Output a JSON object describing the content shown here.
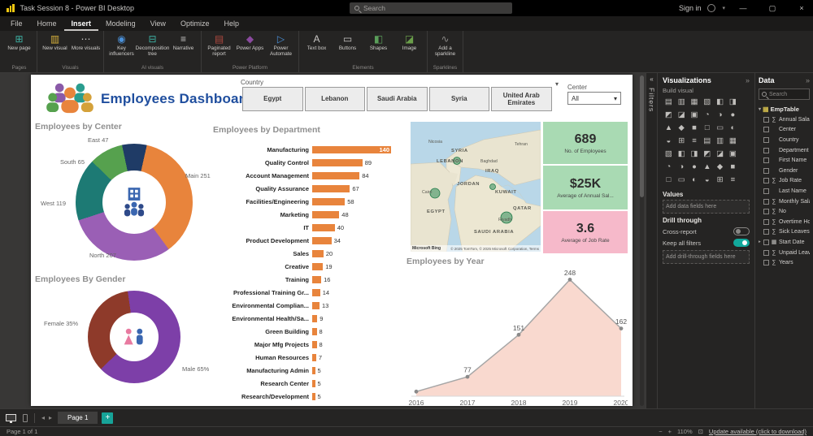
{
  "titlebar": {
    "title": "Task Session 8 - Power BI Desktop",
    "search_placeholder": "Search",
    "sign_in": "Sign in"
  },
  "menubar": {
    "items": [
      "File",
      "Home",
      "Insert",
      "Modeling",
      "View",
      "Optimize",
      "Help"
    ],
    "active": "Insert"
  },
  "ribbon": {
    "groups": [
      {
        "label": "Pages",
        "buttons": [
          {
            "label": "New page",
            "icon": "new-page-icon",
            "glyph": "⊞",
            "color": "#3db0a2"
          }
        ]
      },
      {
        "label": "Visuals",
        "buttons": [
          {
            "label": "New visual",
            "icon": "new-visual-icon",
            "glyph": "▥",
            "color": "#d8b23c"
          },
          {
            "label": "More visuals",
            "icon": "more-visuals-icon",
            "glyph": "⋯",
            "color": "#c8c6c4"
          }
        ]
      },
      {
        "label": "AI visuals",
        "buttons": [
          {
            "label": "Key influencers",
            "icon": "key-influencers-icon",
            "glyph": "◉",
            "color": "#4a90d9"
          },
          {
            "label": "Decomposition tree",
            "icon": "decomposition-tree-icon",
            "glyph": "⊟",
            "color": "#3db0a2"
          },
          {
            "label": "Narrative",
            "icon": "narrative-icon",
            "glyph": "≡",
            "color": "#c8c6c4"
          }
        ]
      },
      {
        "label": "Power Platform",
        "buttons": [
          {
            "label": "Paginated report",
            "icon": "paginated-report-icon",
            "glyph": "▤",
            "color": "#b0493f"
          },
          {
            "label": "Power Apps",
            "icon": "power-apps-icon",
            "glyph": "◆",
            "color": "#8a4a9e"
          },
          {
            "label": "Power Automate",
            "icon": "power-automate-icon",
            "glyph": "▷",
            "color": "#4a90d9"
          }
        ]
      },
      {
        "label": "Elements",
        "buttons": [
          {
            "label": "Text box",
            "icon": "text-box-icon",
            "glyph": "A",
            "color": "#c8c6c4"
          },
          {
            "label": "Buttons",
            "icon": "buttons-icon",
            "glyph": "▭",
            "color": "#c8c6c4"
          },
          {
            "label": "Shapes",
            "icon": "shapes-icon",
            "glyph": "◧",
            "color": "#5a9e5a"
          },
          {
            "label": "Image",
            "icon": "image-icon",
            "glyph": "◪",
            "color": "#6a9e4a"
          }
        ]
      },
      {
        "label": "Sparklines",
        "buttons": [
          {
            "label": "Add a sparkline",
            "icon": "sparkline-icon",
            "glyph": "∿",
            "color": "#8a8886"
          }
        ]
      }
    ]
  },
  "filters_strip": {
    "label": "Filters"
  },
  "viz_panel": {
    "title": "Visualizations",
    "subtitle": "Build visual",
    "icons": [
      "stacked-bar-chart",
      "stacked-column-chart",
      "clustered-bar-chart",
      "clustered-column-chart",
      "100-stacked-bar-chart",
      "100-stacked-column-chart",
      "line-chart",
      "area-chart",
      "stacked-area-chart",
      "line-and-stacked-column-chart",
      "line-and-clustered-column-chart",
      "ribbon-chart",
      "waterfall-chart",
      "funnel-chart",
      "scatter-chart",
      "pie-chart",
      "donut-chart",
      "treemap",
      "map",
      "filled-map",
      "shape-map",
      "azure-map",
      "gauge",
      "card",
      "multi-row-card",
      "kpi",
      "slicer",
      "table",
      "matrix",
      "r-script-visual",
      "python-visual",
      "key-influencers",
      "decomposition-tree",
      "qna-visual",
      "smart-narrative",
      "metrics",
      "paginated-report",
      "arcgis-map",
      "power-apps-visual",
      "power-automate-visual",
      "get-more-visuals",
      "text-box"
    ],
    "values_label": "Values",
    "add_fields_placeholder": "Add data fields here",
    "drill_label": "Drill through",
    "cross_report_label": "Cross-report",
    "cross_report_state": "Off",
    "keep_filters_label": "Keep all filters",
    "keep_filters_state": "On",
    "add_drill_placeholder": "Add drill-through fields here"
  },
  "data_panel": {
    "title": "Data",
    "search_placeholder": "Search",
    "table_name": "EmpTable",
    "fields": [
      {
        "name": "Annual Salary",
        "numeric": true
      },
      {
        "name": "Center",
        "numeric": false
      },
      {
        "name": "Country",
        "numeric": false
      },
      {
        "name": "Department",
        "numeric": false
      },
      {
        "name": "First Name",
        "numeric": false
      },
      {
        "name": "Gender",
        "numeric": false
      },
      {
        "name": "Job Rate",
        "numeric": true
      },
      {
        "name": "Last Name",
        "numeric": false
      },
      {
        "name": "Monthly Salary",
        "numeric": true
      },
      {
        "name": "No",
        "numeric": true
      },
      {
        "name": "Overtime Hours",
        "numeric": true
      },
      {
        "name": "Sick Leaves",
        "numeric": true
      },
      {
        "name": "Start Date",
        "numeric": false,
        "date": true
      },
      {
        "name": "Unpaid Leaves",
        "numeric": true
      },
      {
        "name": "Years",
        "numeric": true
      }
    ]
  },
  "pagebar": {
    "page_tab": "Page 1"
  },
  "statusbar": {
    "page_info": "Page 1 of 1",
    "zoom": "110%",
    "update": "Update available (click to download)"
  },
  "report": {
    "title": "Employees Dashboard",
    "country_label": "Country",
    "country_buttons": [
      "Egypt",
      "Lebanon",
      "Saudi Arabia",
      "Syria",
      "United Arab Emirates"
    ],
    "center_label": "Center",
    "center_value": "All",
    "sections": {
      "center_title": "Employees by Center",
      "department_title": "Employees by Department",
      "gender_title": "Employees By Gender",
      "year_title": "Employees by Year"
    },
    "center_donut_labels": [
      "East 47",
      "South 65",
      "Main 251",
      "West 119",
      "North 207"
    ],
    "gender_donut_labels": [
      "Female 35%",
      "Male 65%"
    ],
    "kpis": [
      {
        "value": "689",
        "label": "No. of Employees"
      },
      {
        "value": "$25K",
        "label": "Average of Annual Sal..."
      },
      {
        "value": "3.6",
        "label": "Average of Job Rate"
      }
    ],
    "map": {
      "labels": [
        "Nicosia",
        "SYRIA",
        "LEBANON",
        "Baghdad",
        "IRAQ",
        "Tehran",
        "JORDAN",
        "Cairo",
        "EGYPT",
        "KUWAIT",
        "QATAR",
        "Riyadh",
        "SAUDI ARABIA"
      ],
      "attribution": "© 2025 TomTom, © 2025 Microsoft Corporation, Terms",
      "provider": "Microsoft Bing"
    }
  },
  "chart_data": [
    {
      "type": "donut",
      "title": "Employees by Center",
      "categories": [
        "East",
        "Main",
        "North",
        "West",
        "South"
      ],
      "values": [
        47,
        251,
        207,
        119,
        65
      ],
      "colors": [
        "#1f3b66",
        "#e8843c",
        "#9a5fb5",
        "#1d7a74",
        "#56a14e"
      ],
      "total": 689
    },
    {
      "type": "bar",
      "title": "Employees by Department",
      "orientation": "horizontal",
      "categories": [
        "Manufacturing",
        "Quality Control",
        "Account Management",
        "Quality Assurance",
        "Facilities/Engineering",
        "Marketing",
        "IT",
        "Product Development",
        "Sales",
        "Creative",
        "Training",
        "Professional Training Gr...",
        "Environmental Complian...",
        "Environmental Health/Sa...",
        "Green Building",
        "Major Mfg Projects",
        "Human Resources",
        "Manufacturing Admin",
        "Research Center",
        "Research/Development"
      ],
      "values": [
        140,
        89,
        84,
        67,
        58,
        48,
        40,
        34,
        20,
        19,
        16,
        14,
        13,
        9,
        8,
        8,
        7,
        5,
        5,
        5
      ],
      "color": "#e8843c"
    },
    {
      "type": "donut",
      "title": "Employees By Gender",
      "categories": [
        "Male",
        "Female"
      ],
      "values": [
        65,
        35
      ],
      "unit": "percent",
      "colors": [
        "#7d3fa8",
        "#8e3a2a"
      ]
    },
    {
      "type": "area",
      "title": "Employees by Year",
      "x": [
        "2016",
        "2017",
        "2018",
        "2019",
        "2020"
      ],
      "values": [
        51,
        77,
        151,
        248,
        162
      ],
      "point_labels": [
        "",
        "77",
        "151",
        "248",
        "162"
      ],
      "line_color": "#a6a6a6",
      "fill_color": "#f9d9cf"
    }
  ]
}
